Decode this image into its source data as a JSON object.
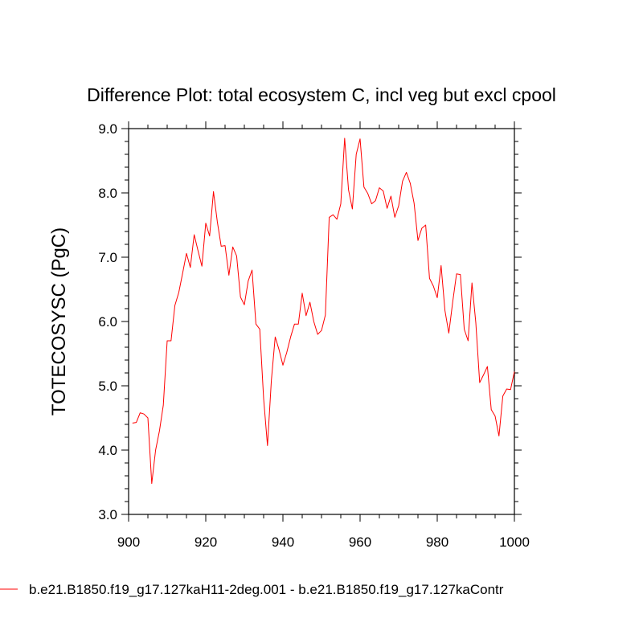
{
  "chart_data": {
    "type": "line",
    "title": "Difference Plot: total ecosystem C, incl veg but excl cpool",
    "xlabel": "",
    "ylabel": "TOTECOSYSC  (PgC)",
    "xlim": [
      900,
      1000
    ],
    "ylim": [
      3.0,
      9.0
    ],
    "x_ticks": [
      900,
      920,
      940,
      960,
      980,
      1000
    ],
    "x_tick_labels": [
      "900",
      "920",
      "940",
      "960",
      "980",
      "1000"
    ],
    "y_ticks": [
      3,
      4,
      5,
      6,
      7,
      8,
      9
    ],
    "y_tick_labels": [
      "3.0",
      "4.0",
      "5.0",
      "6.0",
      "7.0",
      "8.0",
      "9.0"
    ],
    "grid": false,
    "legend_position": "bottom-left",
    "series": [
      {
        "name": "b.e21.B1850.f19_g17.127kaH11-2deg.001 - b.e21.B1850.f19_g17.127kaContr",
        "color": "#ff0000",
        "x": [
          901,
          902,
          903,
          904,
          905,
          906,
          907,
          908,
          909,
          910,
          911,
          912,
          913,
          914,
          915,
          916,
          917,
          918,
          919,
          920,
          921,
          922,
          923,
          924,
          925,
          926,
          927,
          928,
          929,
          930,
          931,
          932,
          933,
          934,
          935,
          936,
          937,
          938,
          939,
          940,
          941,
          942,
          943,
          944,
          945,
          946,
          947,
          948,
          949,
          950,
          951,
          952,
          953,
          954,
          955,
          956,
          957,
          958,
          959,
          960,
          961,
          962,
          963,
          964,
          965,
          966,
          967,
          968,
          969,
          970,
          971,
          972,
          973,
          974,
          975,
          976,
          977,
          978,
          979,
          980,
          981,
          982,
          983,
          984,
          985,
          986,
          987,
          988,
          989,
          990,
          991,
          992,
          993,
          994,
          995,
          996,
          997,
          998,
          999,
          1000
        ],
        "values": [
          4.42,
          4.43,
          4.58,
          4.56,
          4.5,
          3.48,
          4.0,
          4.3,
          4.7,
          5.7,
          5.7,
          6.25,
          6.45,
          6.75,
          7.06,
          6.84,
          7.35,
          7.1,
          6.86,
          7.53,
          7.33,
          8.02,
          7.55,
          7.17,
          7.18,
          6.72,
          7.16,
          7.02,
          6.38,
          6.26,
          6.63,
          6.8,
          5.96,
          5.88,
          4.8,
          4.07,
          5.08,
          5.76,
          5.56,
          5.32,
          5.52,
          5.76,
          5.96,
          5.96,
          6.44,
          6.09,
          6.3,
          6.0,
          5.8,
          5.86,
          6.1,
          7.62,
          7.66,
          7.59,
          7.83,
          8.85,
          8.05,
          7.75,
          8.6,
          8.84,
          8.09,
          7.99,
          7.83,
          7.88,
          8.08,
          8.03,
          7.76,
          7.95,
          7.62,
          7.8,
          8.18,
          8.32,
          8.15,
          7.84,
          7.26,
          7.45,
          7.5,
          6.67,
          6.55,
          6.37,
          6.87,
          6.17,
          5.82,
          6.3,
          6.74,
          6.73,
          5.88,
          5.7,
          6.6,
          5.98,
          5.05,
          5.17,
          5.3,
          4.63,
          4.53,
          4.22,
          4.84,
          4.95,
          4.94,
          5.22
        ]
      }
    ]
  }
}
